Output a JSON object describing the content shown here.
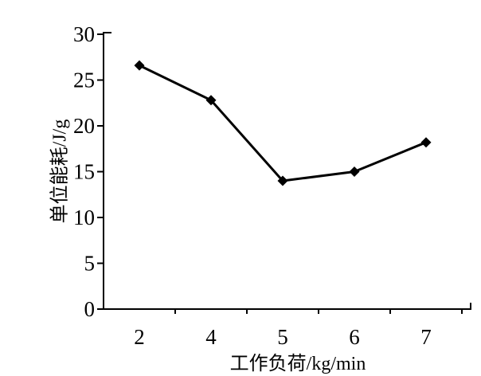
{
  "chart_data": {
    "type": "line",
    "title": "",
    "categories": [
      "2",
      "4",
      "5",
      "6",
      "7"
    ],
    "values": [
      26.6,
      22.8,
      14,
      15,
      18.2
    ],
    "xlabel": "工作负荷/kg/min",
    "ylabel": "单位能耗/J/g",
    "ylim": [
      0,
      30
    ],
    "yticks": [
      0,
      5,
      10,
      15,
      20,
      25,
      30
    ],
    "grid": false,
    "legend": "none",
    "marker": "diamond",
    "line_color": "#000000",
    "marker_color": "#000000",
    "axis_color": "#000000",
    "background_color": "#ffffff"
  }
}
